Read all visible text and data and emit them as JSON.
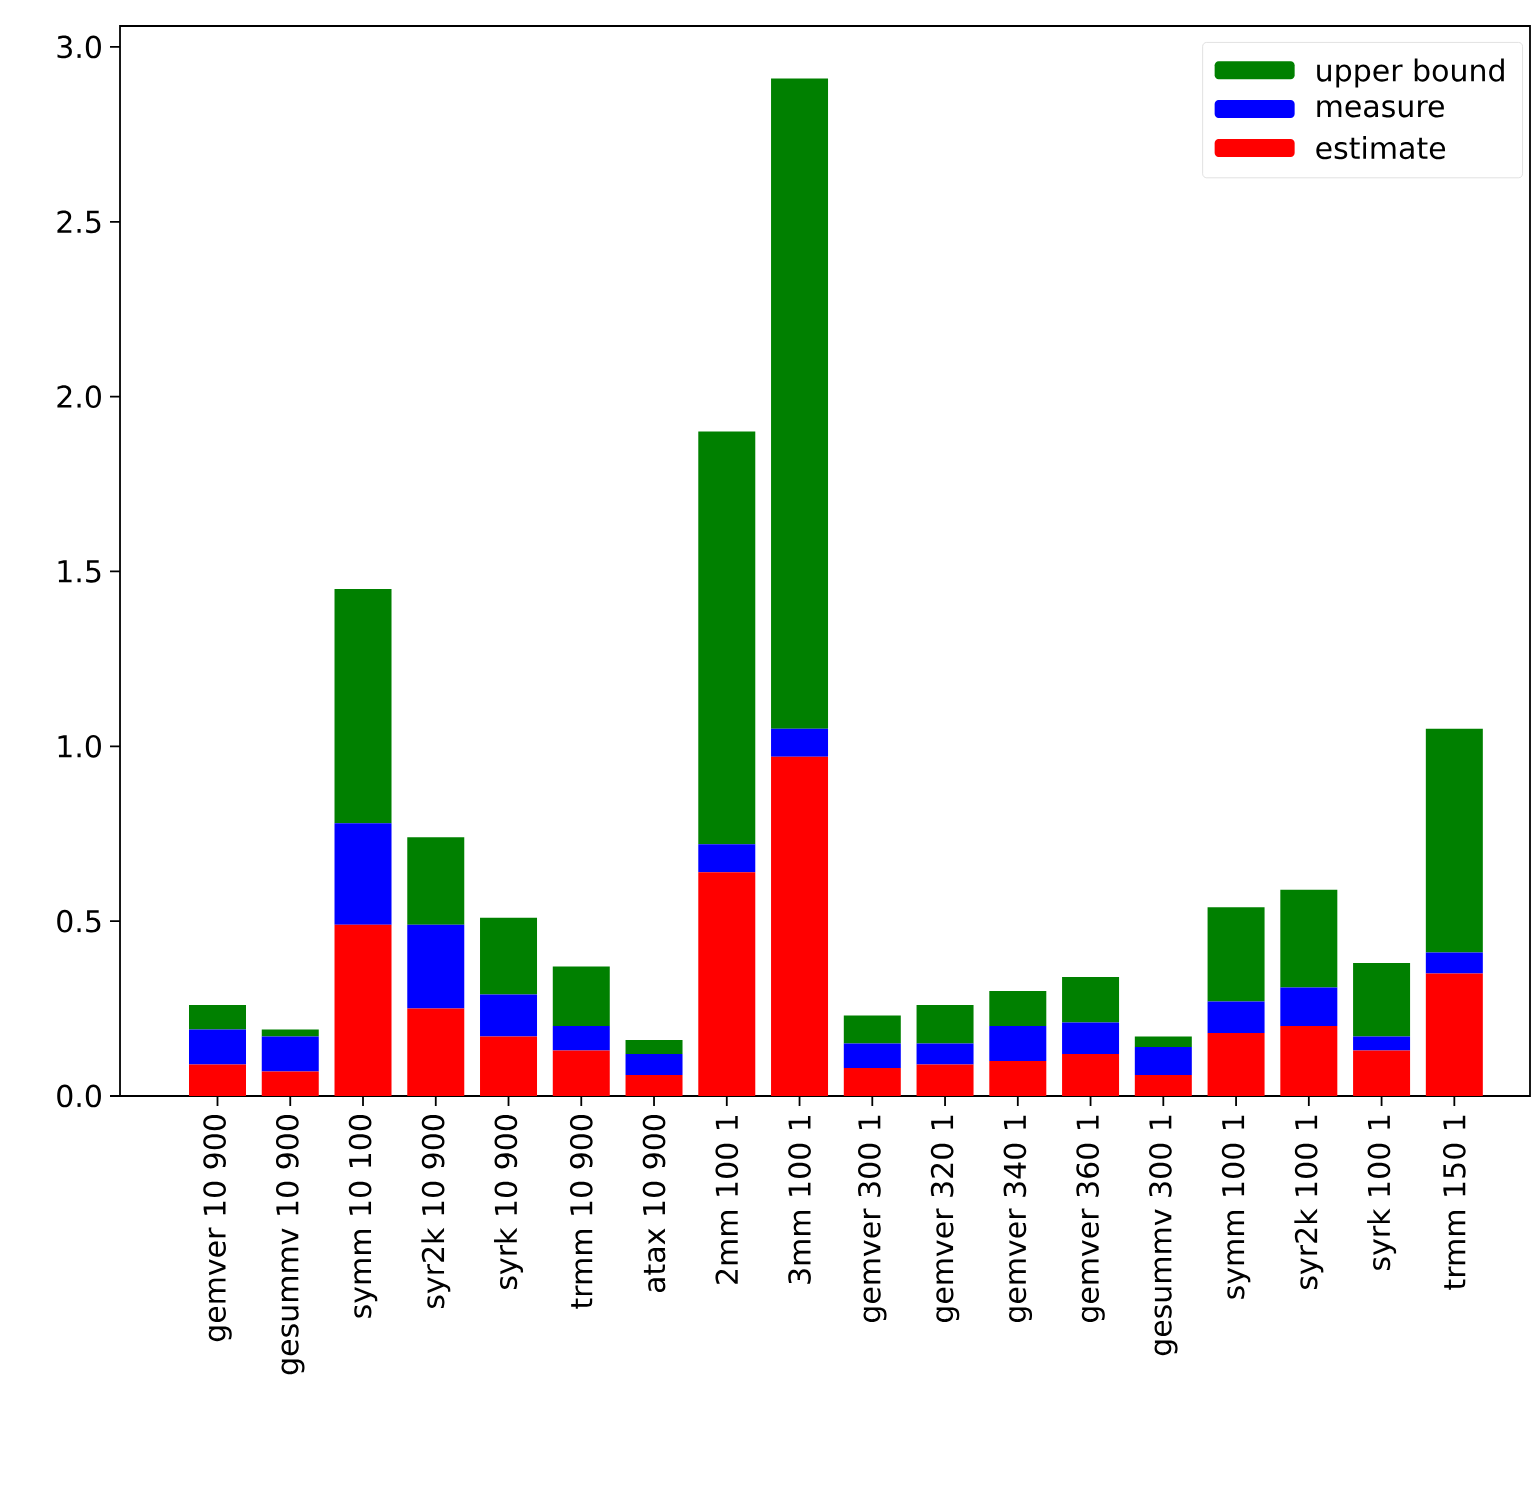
{
  "chart_data": {
    "type": "bar",
    "stacked": true,
    "legend": "top right",
    "categories": [
      "gemver 10 900",
      "gesummv 10 900",
      "symm 10 100",
      "syr2k 10 900",
      "syrk 10 900",
      "trmm 10 900",
      "atax 10 900",
      "2mm 100 1",
      "3mm 100 1",
      "gemver 300 1",
      "gemver 320 1",
      "gemver 340 1",
      "gemver 360 1",
      "gesummv 300 1",
      "symm 100 1",
      "syr2k 100 1",
      "syrk 100 1",
      "trmm 150 1"
    ],
    "series": [
      {
        "name": "estimate",
        "color": "#ff0000",
        "values": [
          0.09,
          0.07,
          0.49,
          0.25,
          0.17,
          0.13,
          0.06,
          0.64,
          0.97,
          0.08,
          0.09,
          0.1,
          0.12,
          0.06,
          0.18,
          0.2,
          0.13,
          0.35
        ]
      },
      {
        "name": "measure",
        "color": "#0000ff",
        "values": [
          0.1,
          0.1,
          0.29,
          0.24,
          0.12,
          0.07,
          0.06,
          0.08,
          0.08,
          0.07,
          0.06,
          0.1,
          0.09,
          0.08,
          0.09,
          0.11,
          0.04,
          0.06
        ]
      },
      {
        "name": "upper bound",
        "color": "#008000",
        "values": [
          0.07,
          0.02,
          0.67,
          0.25,
          0.22,
          0.17,
          0.04,
          1.18,
          1.86,
          0.08,
          0.11,
          0.1,
          0.13,
          0.03,
          0.27,
          0.28,
          0.21,
          0.64
        ]
      }
    ],
    "ylim": [
      0,
      3.06
    ],
    "yticks": [
      {
        "value": 0,
        "label": "0.0"
      },
      0.5,
      {
        "value": 1,
        "label": "1.0"
      },
      1.5,
      {
        "value": 2,
        "label": "2.0"
      },
      2.5,
      {
        "value": 3,
        "label": "3.0"
      }
    ]
  }
}
